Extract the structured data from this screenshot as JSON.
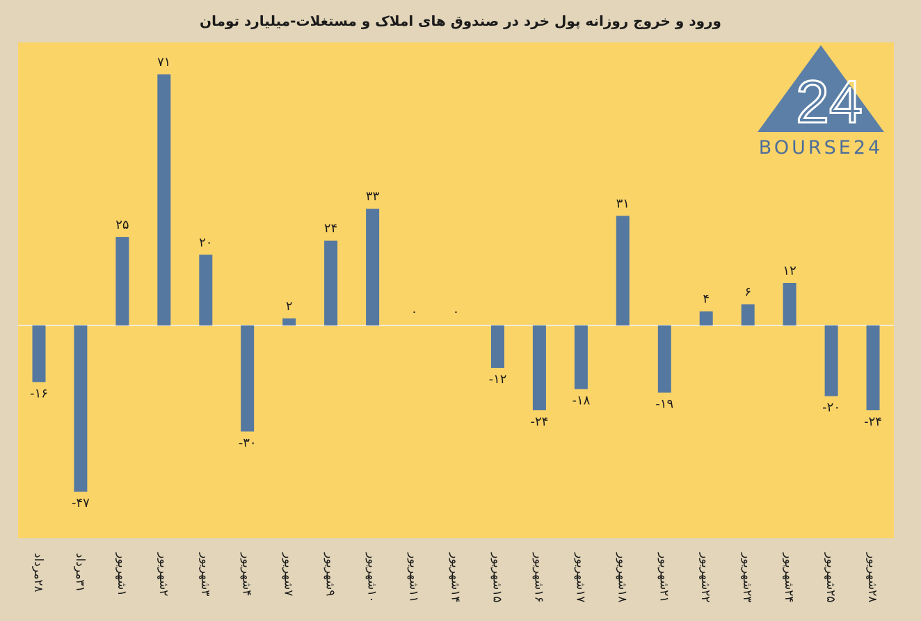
{
  "chart_data": {
    "type": "bar",
    "title": "ورود و خروج روزانه پول خرد در صندوق های املاک و مستغلات-میلیارد تومان",
    "categories": [
      "۲۸مرداد",
      "۳۱مرداد",
      "۱شهریور",
      "۲شهریور",
      "۳شهریور",
      "۴شهریور",
      "۷شهریور",
      "۹شهریور",
      "۱۰شهریور",
      "۱۱شهریور",
      "۱۴شهریور",
      "۱۵شهریور",
      "۱۶شهریور",
      "۱۷شهریور",
      "۱۸شهریور",
      "۲۱شهریور",
      "۲۲شهریور",
      "۲۳شهریور",
      "۲۴شهریور",
      "۲۵شهریور",
      "۲۸شهریور"
    ],
    "values": [
      -16,
      -47,
      25,
      71,
      20,
      -30,
      2,
      24,
      33,
      0,
      0,
      -12,
      -24,
      -18,
      31,
      -19,
      4,
      6,
      12,
      -20,
      -24
    ],
    "value_labels": [
      "-۱۶",
      "-۴۷",
      "۲۵",
      "۷۱",
      "۲۰",
      "-۳۰",
      "۲",
      "۲۴",
      "۳۳",
      "۰",
      "۰",
      "-۱۲",
      "-۲۴",
      "-۱۸",
      "۳۱",
      "-۱۹",
      "۴",
      "۶",
      "۱۲",
      "-۲۰",
      "-۲۴"
    ],
    "xlabel": "",
    "ylabel": "",
    "grid": false,
    "colors": {
      "bar": "#5578a1",
      "plot_bg": "#fbd468",
      "page_bg": "#e2d5b9",
      "zero_line": "#f2ecd8"
    }
  },
  "watermark": {
    "logo_icon": "bourse24-triangle-logo",
    "logo_mark": "24",
    "text": "BOURSE24",
    "color": "#4c6e99"
  }
}
